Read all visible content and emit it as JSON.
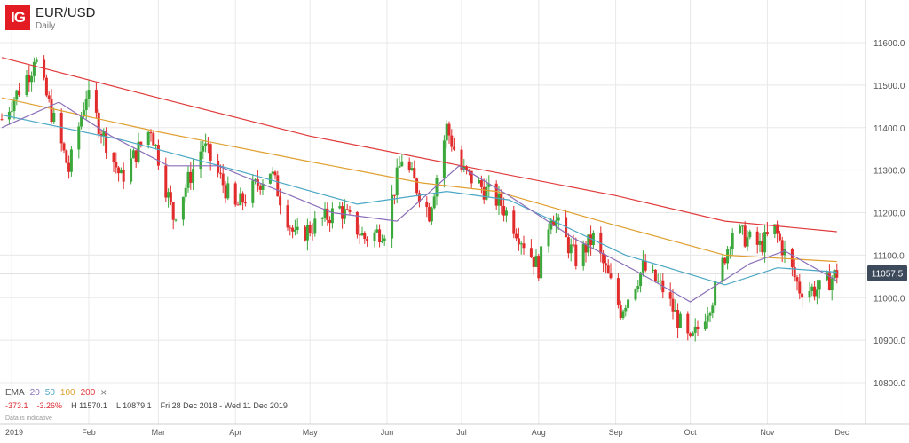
{
  "header": {
    "logo_text": "IG",
    "instrument": "EUR/USD",
    "timeframe": "Daily"
  },
  "indicators": {
    "label": "EMA",
    "periods": [
      "20",
      "50",
      "100",
      "200"
    ],
    "remove_symbol": "×",
    "colors": [
      "#8a6fb8",
      "#4aa7c4",
      "#e0a030",
      "#e03a3a"
    ]
  },
  "stats": {
    "change": "-373.1",
    "change_pct": "-3.26%",
    "high": "H 11570.1",
    "low": "L 10879.1",
    "range": "Fri 28 Dec 2018 - Wed 11 Dec 2019"
  },
  "note": "Data is indicative",
  "colors": {
    "up": "#3aa83a",
    "down": "#e22c2c",
    "grid": "#e8e8e8",
    "price_line": "#8a8a8a",
    "price_tag_bg": "#3c4a5c"
  },
  "chart_data": {
    "type": "candlestick",
    "title": "EUR/USD",
    "subtitle": "Daily",
    "y_ticks": [
      "11600.0",
      "11500.0",
      "11400.0",
      "11300.0",
      "11200.0",
      "11100.0",
      "11000.0",
      "10900.0",
      "10800.0"
    ],
    "ylim": [
      10740,
      11660
    ],
    "x_ticks": [
      "2019",
      "Feb",
      "Mar",
      "Apr",
      "May",
      "Jun",
      "Jul",
      "Aug",
      "Sep",
      "Oct",
      "Nov",
      "Dec"
    ],
    "current_price": "11057.5",
    "grid": true,
    "key_points": [
      {
        "date": "2019-01-10",
        "value": 11570
      },
      {
        "date": "2019-01-24",
        "value": 11300
      },
      {
        "date": "2019-01-31",
        "value": 11480
      },
      {
        "date": "2019-02-14",
        "value": 11280
      },
      {
        "date": "2019-02-26",
        "value": 11400
      },
      {
        "date": "2019-03-07",
        "value": 11190
      },
      {
        "date": "2019-03-19",
        "value": 11360
      },
      {
        "date": "2019-04-01",
        "value": 11210
      },
      {
        "date": "2019-04-15",
        "value": 11300
      },
      {
        "date": "2019-04-25",
        "value": 11140
      },
      {
        "date": "2019-05-13",
        "value": 11210
      },
      {
        "date": "2019-05-23",
        "value": 11140
      },
      {
        "date": "2019-05-31",
        "value": 11160
      },
      {
        "date": "2019-06-07",
        "value": 11330
      },
      {
        "date": "2019-06-18",
        "value": 11200
      },
      {
        "date": "2019-06-25",
        "value": 11400
      },
      {
        "date": "2019-07-01",
        "value": 11300
      },
      {
        "date": "2019-07-17",
        "value": 11220
      },
      {
        "date": "2019-08-01",
        "value": 11070
      },
      {
        "date": "2019-08-06",
        "value": 11200
      },
      {
        "date": "2019-08-16",
        "value": 11090
      },
      {
        "date": "2019-08-23",
        "value": 11140
      },
      {
        "date": "2019-09-03",
        "value": 10970
      },
      {
        "date": "2019-09-12",
        "value": 11070
      },
      {
        "date": "2019-09-20",
        "value": 11020
      },
      {
        "date": "2019-10-01",
        "value": 10890
      },
      {
        "date": "2019-10-10",
        "value": 11000
      },
      {
        "date": "2019-10-18",
        "value": 11160
      },
      {
        "date": "2019-10-29",
        "value": 11120
      },
      {
        "date": "2019-11-04",
        "value": 11160
      },
      {
        "date": "2019-11-14",
        "value": 11020
      },
      {
        "date": "2019-11-22",
        "value": 11020
      },
      {
        "date": "2019-11-29",
        "value": 11057.5
      }
    ],
    "ema": [
      {
        "name": "200",
        "color": "#e03a3a",
        "points": [
          [
            "2018-12-28",
            11565
          ],
          [
            "2019-03-01",
            11470
          ],
          [
            "2019-05-01",
            11380
          ],
          [
            "2019-07-01",
            11310
          ],
          [
            "2019-09-01",
            11240
          ],
          [
            "2019-10-15",
            11180
          ],
          [
            "2019-11-29",
            11155
          ]
        ]
      },
      {
        "name": "100",
        "color": "#e0a030",
        "points": [
          [
            "2018-12-28",
            11470
          ],
          [
            "2019-03-01",
            11390
          ],
          [
            "2019-05-01",
            11320
          ],
          [
            "2019-06-15",
            11270
          ],
          [
            "2019-07-15",
            11250
          ],
          [
            "2019-09-01",
            11170
          ],
          [
            "2019-10-15",
            11100
          ],
          [
            "2019-11-29",
            11085
          ]
        ]
      },
      {
        "name": "50",
        "color": "#4aa7c4",
        "points": [
          [
            "2018-12-28",
            11430
          ],
          [
            "2019-02-15",
            11370
          ],
          [
            "2019-04-01",
            11300
          ],
          [
            "2019-05-20",
            11220
          ],
          [
            "2019-06-25",
            11250
          ],
          [
            "2019-07-20",
            11230
          ],
          [
            "2019-09-05",
            11100
          ],
          [
            "2019-10-15",
            11030
          ],
          [
            "2019-11-05",
            11070
          ],
          [
            "2019-11-29",
            11060
          ]
        ]
      },
      {
        "name": "20",
        "color": "#8a6fb8",
        "points": [
          [
            "2018-12-28",
            11400
          ],
          [
            "2019-01-20",
            11460
          ],
          [
            "2019-02-10",
            11380
          ],
          [
            "2019-03-05",
            11310
          ],
          [
            "2019-03-25",
            11310
          ],
          [
            "2019-04-15",
            11260
          ],
          [
            "2019-05-10",
            11200
          ],
          [
            "2019-06-05",
            11180
          ],
          [
            "2019-06-30",
            11310
          ],
          [
            "2019-07-20",
            11240
          ],
          [
            "2019-08-15",
            11140
          ],
          [
            "2019-09-10",
            11060
          ],
          [
            "2019-10-01",
            10990
          ],
          [
            "2019-10-25",
            11080
          ],
          [
            "2019-11-08",
            11110
          ],
          [
            "2019-11-29",
            11040
          ]
        ]
      }
    ]
  }
}
